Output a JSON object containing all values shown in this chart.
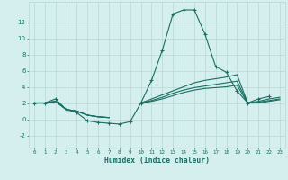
{
  "xlabel": "Humidex (Indice chaleur)",
  "bg_color": "#d4efee",
  "grid_color": "#b8d8d5",
  "line_color": "#1a6e62",
  "x_ticks": [
    0,
    1,
    2,
    3,
    4,
    5,
    6,
    7,
    8,
    9,
    10,
    11,
    12,
    13,
    14,
    15,
    16,
    17,
    18,
    19,
    20,
    21,
    22,
    23
  ],
  "ylim": [
    -3.5,
    14.5
  ],
  "xlim": [
    -0.5,
    23.5
  ],
  "yticks": [
    -2,
    0,
    2,
    4,
    6,
    8,
    10,
    12
  ],
  "series": [
    [
      2.0,
      2.0,
      2.5,
      1.2,
      0.8,
      -0.2,
      -0.4,
      -0.5,
      -0.6,
      -0.3,
      2.0,
      4.8,
      8.5,
      13.0,
      13.5,
      13.5,
      10.5,
      6.5,
      5.8,
      3.5,
      2.0,
      2.5,
      2.8,
      null
    ],
    [
      2.0,
      2.0,
      2.2,
      1.2,
      1.0,
      0.5,
      0.3,
      0.2,
      null,
      null,
      2.0,
      2.5,
      3.0,
      3.5,
      4.0,
      4.5,
      4.8,
      5.0,
      5.2,
      5.5,
      2.0,
      2.2,
      2.5,
      2.7
    ],
    [
      2.0,
      2.0,
      2.2,
      1.2,
      1.0,
      0.5,
      0.3,
      0.2,
      null,
      null,
      2.0,
      2.3,
      2.7,
      3.2,
      3.6,
      3.9,
      4.1,
      4.3,
      4.5,
      4.7,
      2.0,
      2.1,
      2.3,
      2.5
    ],
    [
      2.0,
      2.0,
      2.2,
      1.2,
      1.0,
      0.5,
      0.3,
      0.2,
      null,
      null,
      2.0,
      2.2,
      2.5,
      2.9,
      3.3,
      3.6,
      3.8,
      3.9,
      4.0,
      4.2,
      2.0,
      2.0,
      2.2,
      2.4
    ]
  ]
}
